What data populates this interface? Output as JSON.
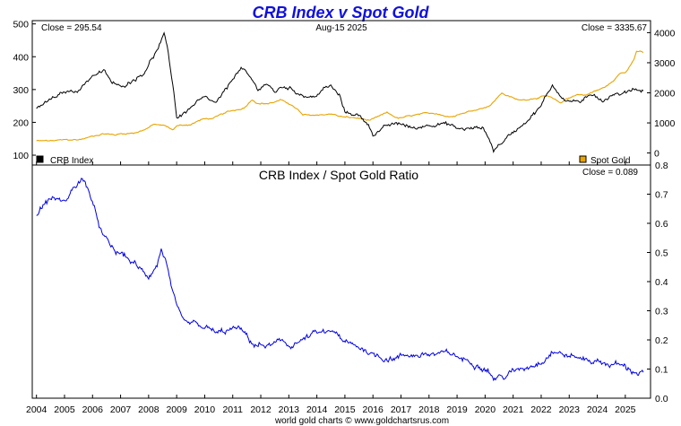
{
  "chart_data": [
    {
      "type": "line",
      "title": "CRB Index v Spot Gold",
      "date_label": "Aug-15  2025",
      "left_close_label": "Close = 295.54",
      "right_close_label": "Close = 3335.67",
      "y_left_range": [
        70,
        510
      ],
      "y_right_range": [
        -400,
        4400
      ],
      "y_left_ticks": [
        100,
        200,
        300,
        400,
        500
      ],
      "y_right_ticks": [
        0,
        1000,
        2000,
        3000,
        4000
      ],
      "series": [
        {
          "name": "CRB Index",
          "axis": "left",
          "color": "#000000",
          "points": [
            [
              2004.0,
              242
            ],
            [
              2004.5,
              268
            ],
            [
              2005.0,
              290
            ],
            [
              2005.5,
              300
            ],
            [
              2005.8,
              325
            ],
            [
              2006.0,
              345
            ],
            [
              2006.4,
              355
            ],
            [
              2006.7,
              320
            ],
            [
              2007.0,
              305
            ],
            [
              2007.5,
              335
            ],
            [
              2007.8,
              350
            ],
            [
              2008.0,
              380
            ],
            [
              2008.3,
              420
            ],
            [
              2008.55,
              465
            ],
            [
              2008.7,
              410
            ],
            [
              2008.9,
              290
            ],
            [
              2009.0,
              215
            ],
            [
              2009.2,
              225
            ],
            [
              2009.5,
              245
            ],
            [
              2009.8,
              265
            ],
            [
              2010.0,
              270
            ],
            [
              2010.4,
              255
            ],
            [
              2010.8,
              300
            ],
            [
              2011.0,
              335
            ],
            [
              2011.3,
              365
            ],
            [
              2011.6,
              335
            ],
            [
              2011.9,
              300
            ],
            [
              2012.2,
              320
            ],
            [
              2012.5,
              290
            ],
            [
              2012.8,
              310
            ],
            [
              2013.0,
              305
            ],
            [
              2013.5,
              285
            ],
            [
              2013.9,
              275
            ],
            [
              2014.2,
              300
            ],
            [
              2014.5,
              310
            ],
            [
              2014.8,
              280
            ],
            [
              2015.0,
              230
            ],
            [
              2015.4,
              225
            ],
            [
              2015.8,
              200
            ],
            [
              2016.0,
              165
            ],
            [
              2016.3,
              180
            ],
            [
              2016.6,
              190
            ],
            [
              2017.0,
              195
            ],
            [
              2017.5,
              180
            ],
            [
              2018.0,
              195
            ],
            [
              2018.4,
              200
            ],
            [
              2018.8,
              190
            ],
            [
              2019.0,
              180
            ],
            [
              2019.5,
              180
            ],
            [
              2019.9,
              185
            ],
            [
              2020.1,
              160
            ],
            [
              2020.3,
              115
            ],
            [
              2020.6,
              140
            ],
            [
              2021.0,
              170
            ],
            [
              2021.5,
              210
            ],
            [
              2022.0,
              250
            ],
            [
              2022.4,
              315
            ],
            [
              2022.7,
              280
            ],
            [
              2023.0,
              265
            ],
            [
              2023.5,
              265
            ],
            [
              2023.9,
              285
            ],
            [
              2024.2,
              270
            ],
            [
              2024.6,
              290
            ],
            [
              2024.9,
              285
            ],
            [
              2025.3,
              305
            ],
            [
              2025.64,
              296
            ]
          ]
        },
        {
          "name": "Spot Gold",
          "axis": "right",
          "color": "#e8a400",
          "points": [
            [
              2004.0,
              400
            ],
            [
              2004.5,
              400
            ],
            [
              2005.0,
              430
            ],
            [
              2005.5,
              440
            ],
            [
              2005.8,
              500
            ],
            [
              2006.0,
              560
            ],
            [
              2006.4,
              650
            ],
            [
              2006.8,
              600
            ],
            [
              2007.0,
              640
            ],
            [
              2007.5,
              670
            ],
            [
              2007.9,
              800
            ],
            [
              2008.2,
              950
            ],
            [
              2008.6,
              900
            ],
            [
              2008.85,
              760
            ],
            [
              2009.0,
              900
            ],
            [
              2009.5,
              950
            ],
            [
              2009.9,
              1120
            ],
            [
              2010.3,
              1150
            ],
            [
              2010.8,
              1350
            ],
            [
              2011.0,
              1400
            ],
            [
              2011.4,
              1500
            ],
            [
              2011.7,
              1800
            ],
            [
              2011.9,
              1650
            ],
            [
              2012.3,
              1650
            ],
            [
              2012.7,
              1750
            ],
            [
              2013.0,
              1650
            ],
            [
              2013.3,
              1450
            ],
            [
              2013.5,
              1250
            ],
            [
              2013.9,
              1250
            ],
            [
              2014.5,
              1300
            ],
            [
              2014.9,
              1200
            ],
            [
              2015.5,
              1150
            ],
            [
              2015.9,
              1070
            ],
            [
              2016.5,
              1330
            ],
            [
              2016.9,
              1150
            ],
            [
              2017.5,
              1250
            ],
            [
              2017.9,
              1300
            ],
            [
              2018.3,
              1320
            ],
            [
              2018.7,
              1200
            ],
            [
              2019.0,
              1290
            ],
            [
              2019.5,
              1400
            ],
            [
              2019.9,
              1500
            ],
            [
              2020.2,
              1600
            ],
            [
              2020.6,
              2000
            ],
            [
              2020.8,
              1900
            ],
            [
              2021.2,
              1750
            ],
            [
              2021.6,
              1800
            ],
            [
              2022.2,
              1900
            ],
            [
              2022.7,
              1650
            ],
            [
              2022.9,
              1800
            ],
            [
              2023.3,
              1950
            ],
            [
              2023.6,
              1930
            ],
            [
              2023.9,
              2050
            ],
            [
              2024.2,
              2150
            ],
            [
              2024.6,
              2400
            ],
            [
              2024.8,
              2650
            ],
            [
              2025.0,
              2700
            ],
            [
              2025.3,
              3100
            ],
            [
              2025.4,
              3400
            ],
            [
              2025.64,
              3336
            ]
          ]
        }
      ],
      "legend": [
        "CRB Index",
        "Spot Gold"
      ]
    },
    {
      "type": "line",
      "title": "CRB Index  /  Spot Gold Ratio",
      "close_label": "Close = 0.089",
      "y_range": [
        0.0,
        0.8
      ],
      "y_ticks": [
        0.0,
        0.1,
        0.2,
        0.3,
        0.4,
        0.5,
        0.6,
        0.7,
        0.8
      ],
      "x_ticks": [
        2004,
        2005,
        2006,
        2007,
        2008,
        2009,
        2010,
        2011,
        2012,
        2013,
        2014,
        2015,
        2016,
        2017,
        2018,
        2019,
        2020,
        2021,
        2022,
        2023,
        2024,
        2025
      ],
      "x_range": [
        2003.85,
        2025.9
      ],
      "series": [
        {
          "name": "CRB Index / Spot Gold Ratio",
          "color": "#0000e0",
          "points": [
            [
              2004.0,
              0.63
            ],
            [
              2004.3,
              0.67
            ],
            [
              2004.6,
              0.69
            ],
            [
              2005.0,
              0.67
            ],
            [
              2005.3,
              0.72
            ],
            [
              2005.6,
              0.75
            ],
            [
              2005.85,
              0.72
            ],
            [
              2006.1,
              0.63
            ],
            [
              2006.4,
              0.55
            ],
            [
              2006.8,
              0.5
            ],
            [
              2007.1,
              0.49
            ],
            [
              2007.5,
              0.46
            ],
            [
              2007.8,
              0.43
            ],
            [
              2008.0,
              0.42
            ],
            [
              2008.3,
              0.46
            ],
            [
              2008.45,
              0.51
            ],
            [
              2008.6,
              0.48
            ],
            [
              2008.8,
              0.38
            ],
            [
              2009.0,
              0.3
            ],
            [
              2009.3,
              0.25
            ],
            [
              2009.6,
              0.25
            ],
            [
              2010.0,
              0.24
            ],
            [
              2010.5,
              0.22
            ],
            [
              2010.8,
              0.23
            ],
            [
              2011.2,
              0.24
            ],
            [
              2011.5,
              0.21
            ],
            [
              2011.8,
              0.18
            ],
            [
              2012.3,
              0.18
            ],
            [
              2012.8,
              0.19
            ],
            [
              2013.0,
              0.18
            ],
            [
              2013.5,
              0.2
            ],
            [
              2013.9,
              0.22
            ],
            [
              2014.3,
              0.22
            ],
            [
              2014.7,
              0.23
            ],
            [
              2014.9,
              0.19
            ],
            [
              2015.3,
              0.18
            ],
            [
              2015.7,
              0.17
            ],
            [
              2016.0,
              0.15
            ],
            [
              2016.4,
              0.14
            ],
            [
              2016.8,
              0.14
            ],
            [
              2017.3,
              0.15
            ],
            [
              2017.8,
              0.15
            ],
            [
              2018.3,
              0.15
            ],
            [
              2018.8,
              0.15
            ],
            [
              2019.3,
              0.13
            ],
            [
              2019.8,
              0.12
            ],
            [
              2020.1,
              0.1
            ],
            [
              2020.3,
              0.07
            ],
            [
              2020.7,
              0.075
            ],
            [
              2021.0,
              0.09
            ],
            [
              2021.5,
              0.11
            ],
            [
              2022.0,
              0.13
            ],
            [
              2022.4,
              0.165
            ],
            [
              2022.7,
              0.155
            ],
            [
              2023.0,
              0.145
            ],
            [
              2023.5,
              0.135
            ],
            [
              2023.9,
              0.13
            ],
            [
              2024.3,
              0.12
            ],
            [
              2024.8,
              0.115
            ],
            [
              2025.1,
              0.1
            ],
            [
              2025.4,
              0.09
            ],
            [
              2025.64,
              0.089
            ]
          ]
        }
      ]
    }
  ],
  "footer": "world gold charts © www.goldchartsrus.com"
}
